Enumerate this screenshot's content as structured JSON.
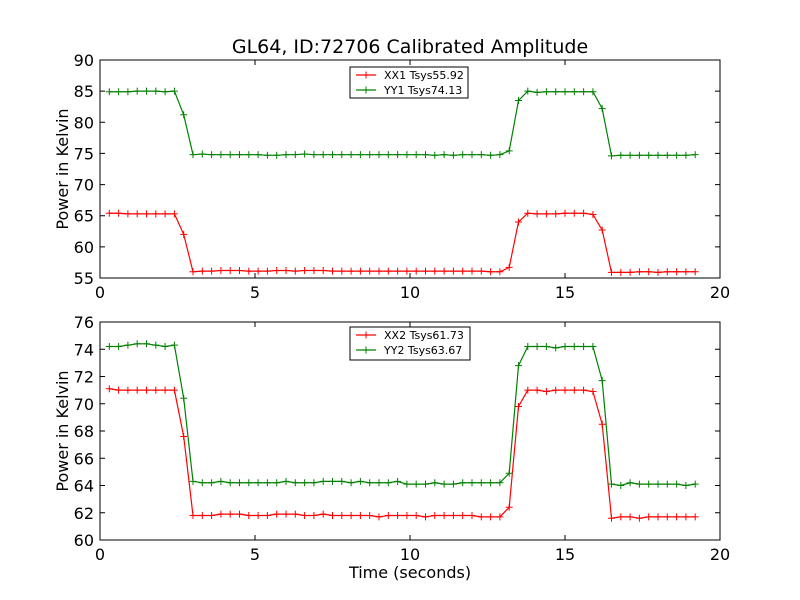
{
  "title": "GL64, ID:72706 Calibrated Amplitude",
  "chart_data": [
    {
      "type": "line",
      "title": "GL64, ID:72706 Calibrated Amplitude",
      "xlabel": "",
      "ylabel": "Power in Kelvin",
      "xlim": [
        0,
        20
      ],
      "ylim": [
        55,
        90
      ],
      "xticks": [
        0,
        5,
        10,
        15,
        20
      ],
      "yticks": [
        55,
        60,
        65,
        70,
        75,
        80,
        85,
        90
      ],
      "grid": false,
      "legend_position": "top-center",
      "marker": "plus",
      "x": [
        0.3,
        0.6,
        0.9,
        1.2,
        1.5,
        1.8,
        2.1,
        2.4,
        2.7,
        3.0,
        3.3,
        3.6,
        3.9,
        4.2,
        4.5,
        4.8,
        5.1,
        5.4,
        5.7,
        6.0,
        6.3,
        6.6,
        6.9,
        7.2,
        7.5,
        7.8,
        8.1,
        8.4,
        8.7,
        9.0,
        9.3,
        9.6,
        9.9,
        10.2,
        10.5,
        10.8,
        11.1,
        11.4,
        11.7,
        12.0,
        12.3,
        12.6,
        12.9,
        13.2,
        13.5,
        13.8,
        14.1,
        14.4,
        14.7,
        15.0,
        15.3,
        15.6,
        15.9,
        16.2,
        16.5,
        16.8,
        17.1,
        17.4,
        17.7,
        18.0,
        18.3,
        18.6,
        18.9,
        19.2
      ],
      "series": [
        {
          "name": "XX1 Tsys55.92",
          "color": "#ff0000",
          "values": [
            65.4,
            65.4,
            65.3,
            65.3,
            65.3,
            65.3,
            65.3,
            65.3,
            62.0,
            56.0,
            56.1,
            56.1,
            56.2,
            56.2,
            56.2,
            56.1,
            56.1,
            56.1,
            56.2,
            56.2,
            56.1,
            56.2,
            56.2,
            56.2,
            56.1,
            56.1,
            56.1,
            56.1,
            56.1,
            56.1,
            56.1,
            56.1,
            56.1,
            56.1,
            56.1,
            56.1,
            56.1,
            56.1,
            56.1,
            56.1,
            56.1,
            56.0,
            56.0,
            56.7,
            64.0,
            65.4,
            65.3,
            65.3,
            65.3,
            65.4,
            65.4,
            65.4,
            65.2,
            62.7,
            55.9,
            55.9,
            55.9,
            56.0,
            56.0,
            55.9,
            56.0,
            56.0,
            56.0,
            56.0
          ]
        },
        {
          "name": "YY1 Tsys74.13",
          "color": "#008000",
          "values": [
            84.9,
            84.9,
            84.9,
            85.0,
            85.0,
            85.0,
            84.9,
            85.0,
            81.2,
            74.8,
            74.9,
            74.8,
            74.8,
            74.8,
            74.8,
            74.8,
            74.8,
            74.7,
            74.7,
            74.8,
            74.8,
            74.9,
            74.8,
            74.8,
            74.8,
            74.8,
            74.8,
            74.8,
            74.8,
            74.8,
            74.8,
            74.8,
            74.8,
            74.8,
            74.8,
            74.7,
            74.8,
            74.7,
            74.8,
            74.8,
            74.8,
            74.7,
            74.8,
            75.4,
            83.5,
            85.0,
            84.8,
            84.9,
            84.9,
            84.9,
            84.9,
            84.9,
            84.9,
            82.2,
            74.6,
            74.7,
            74.7,
            74.7,
            74.7,
            74.7,
            74.7,
            74.7,
            74.7,
            74.8
          ]
        }
      ]
    },
    {
      "type": "line",
      "title": "",
      "xlabel": "Time (seconds)",
      "ylabel": "Power in Kelvin",
      "xlim": [
        0,
        20
      ],
      "ylim": [
        60,
        76
      ],
      "xticks": [
        0,
        5,
        10,
        15,
        20
      ],
      "yticks": [
        60,
        62,
        64,
        66,
        68,
        70,
        72,
        74,
        76
      ],
      "grid": false,
      "legend_position": "top-center",
      "marker": "plus",
      "x": [
        0.3,
        0.6,
        0.9,
        1.2,
        1.5,
        1.8,
        2.1,
        2.4,
        2.7,
        3.0,
        3.3,
        3.6,
        3.9,
        4.2,
        4.5,
        4.8,
        5.1,
        5.4,
        5.7,
        6.0,
        6.3,
        6.6,
        6.9,
        7.2,
        7.5,
        7.8,
        8.1,
        8.4,
        8.7,
        9.0,
        9.3,
        9.6,
        9.9,
        10.2,
        10.5,
        10.8,
        11.1,
        11.4,
        11.7,
        12.0,
        12.3,
        12.6,
        12.9,
        13.2,
        13.5,
        13.8,
        14.1,
        14.4,
        14.7,
        15.0,
        15.3,
        15.6,
        15.9,
        16.2,
        16.5,
        16.8,
        17.1,
        17.4,
        17.7,
        18.0,
        18.3,
        18.6,
        18.9,
        19.2
      ],
      "series": [
        {
          "name": "XX2 Tsys61.73",
          "color": "#ff0000",
          "values": [
            71.1,
            71.0,
            71.0,
            71.0,
            71.0,
            71.0,
            71.0,
            71.0,
            67.6,
            61.8,
            61.8,
            61.8,
            61.9,
            61.9,
            61.9,
            61.8,
            61.8,
            61.8,
            61.9,
            61.9,
            61.9,
            61.8,
            61.8,
            61.9,
            61.8,
            61.8,
            61.8,
            61.8,
            61.8,
            61.7,
            61.8,
            61.8,
            61.8,
            61.8,
            61.7,
            61.8,
            61.8,
            61.8,
            61.8,
            61.8,
            61.7,
            61.7,
            61.7,
            62.4,
            69.8,
            71.0,
            71.0,
            70.9,
            71.0,
            71.0,
            71.0,
            71.0,
            70.9,
            68.5,
            61.6,
            61.7,
            61.7,
            61.6,
            61.7,
            61.7,
            61.7,
            61.7,
            61.7,
            61.7
          ]
        },
        {
          "name": "YY2 Tsys63.67",
          "color": "#008000",
          "values": [
            74.2,
            74.2,
            74.3,
            74.4,
            74.4,
            74.3,
            74.2,
            74.3,
            70.4,
            64.3,
            64.2,
            64.2,
            64.3,
            64.2,
            64.2,
            64.2,
            64.2,
            64.2,
            64.2,
            64.3,
            64.2,
            64.2,
            64.2,
            64.3,
            64.3,
            64.3,
            64.2,
            64.3,
            64.2,
            64.2,
            64.2,
            64.3,
            64.1,
            64.1,
            64.1,
            64.2,
            64.1,
            64.1,
            64.2,
            64.2,
            64.2,
            64.2,
            64.2,
            64.9,
            72.8,
            74.2,
            74.2,
            74.2,
            74.1,
            74.2,
            74.2,
            74.2,
            74.2,
            71.7,
            64.1,
            64.0,
            64.2,
            64.1,
            64.1,
            64.1,
            64.1,
            64.1,
            64.0,
            64.1
          ]
        }
      ]
    }
  ]
}
